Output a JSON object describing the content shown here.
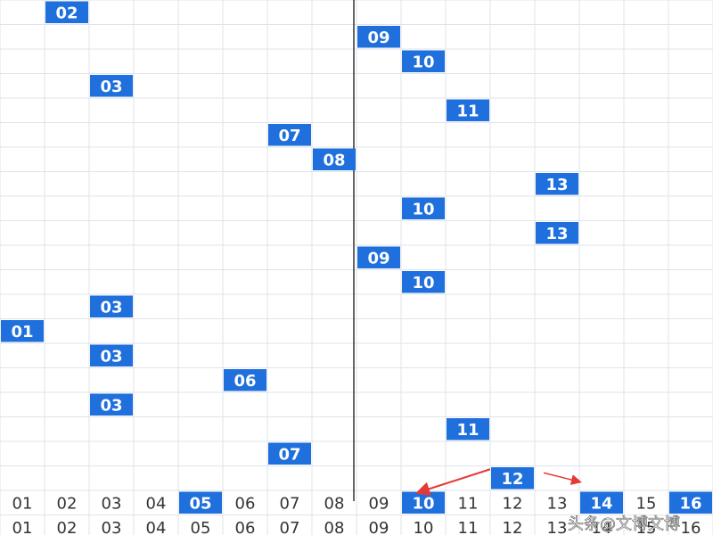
{
  "rows": [
    "02",
    "09",
    "10",
    "03",
    "11",
    "07",
    "08",
    "13",
    "10",
    "13",
    "09",
    "10",
    "03",
    "01",
    "03",
    "06",
    "03",
    "11",
    "07",
    "12"
  ],
  "footer": [
    {
      "cells": [
        "01",
        "02",
        "03",
        "04",
        "05",
        "06",
        "07",
        "08",
        "09",
        "10",
        "11",
        "12",
        "13",
        "14",
        "15",
        "16"
      ],
      "highlighted": [
        "05",
        "10",
        "14",
        "16"
      ]
    },
    {
      "cells": [
        "01",
        "02",
        "03",
        "04",
        "05",
        "06",
        "07",
        "08",
        "09",
        "10",
        "11",
        "12",
        "13",
        "14",
        "15",
        "16"
      ],
      "highlighted": []
    }
  ],
  "watermark": "头条@文博文博"
}
